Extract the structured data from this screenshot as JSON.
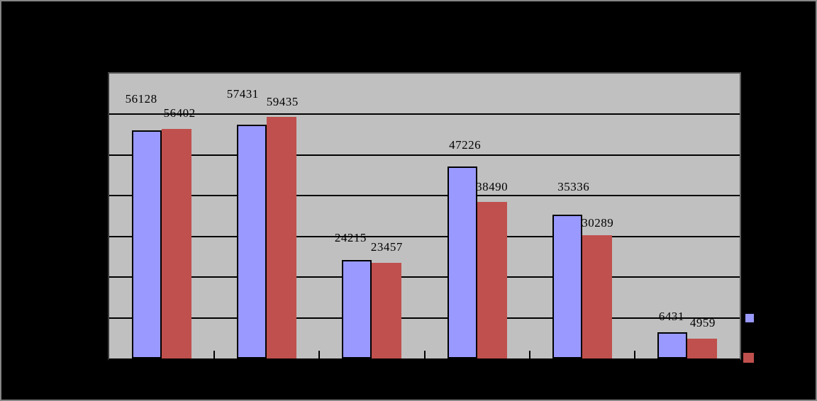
{
  "chart_data": {
    "type": "bar",
    "title": "",
    "xlabel": "",
    "ylabel": "",
    "categories": [
      "",
      "",
      "",
      "",
      "",
      ""
    ],
    "series": [
      {
        "name": "",
        "color": "#9999ff",
        "values": [
          56128,
          57431,
          24215,
          47226,
          35336,
          6431
        ],
        "data_labels": [
          "56128",
          "57431",
          "24215",
          "47226",
          "35336",
          "6431"
        ]
      },
      {
        "name": "",
        "color": "#c0504d",
        "values": [
          56402,
          59435,
          23457,
          38490,
          30289,
          4959
        ],
        "data_labels": [
          "56402",
          "59435",
          "23457",
          "38490",
          "30289",
          "4959"
        ]
      }
    ],
    "ylim": [
      0,
      70000
    ],
    "y_gridline_step": 10000,
    "grid": true,
    "legend_position": "right",
    "colors": {
      "canvas_bg": "#000000",
      "canvas_border": "#868686",
      "plot_bg": "#c0c0c0",
      "gridline": "#000000",
      "label_text": "#000000"
    }
  }
}
